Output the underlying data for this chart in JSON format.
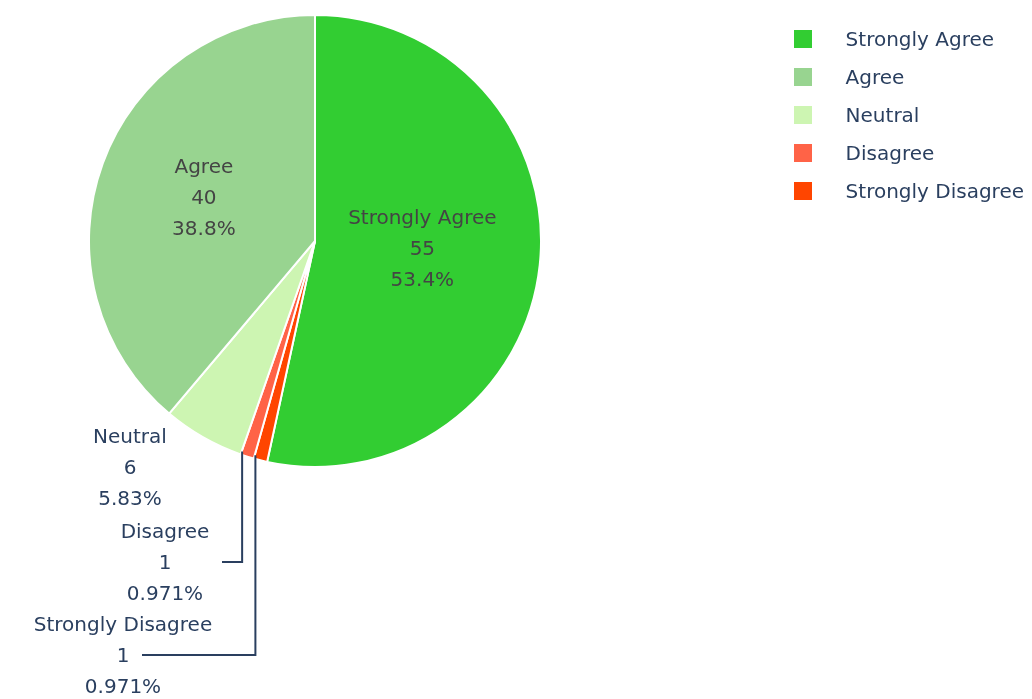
{
  "chart_data": {
    "type": "pie",
    "categories": [
      "Strongly Agree",
      "Agree",
      "Neutral",
      "Disagree",
      "Strongly Disagree"
    ],
    "values": [
      55,
      40,
      6,
      1,
      1
    ],
    "colors": [
      "#32cd32",
      "#98d490",
      "#cdf5b2",
      "#ff6347",
      "#ff4500"
    ],
    "value_labels": [
      "55\n53.4%",
      "40\n38.8%",
      "6\n5.83%",
      "1\n0.971%",
      "1\n0.971%"
    ],
    "legend": "top right"
  }
}
